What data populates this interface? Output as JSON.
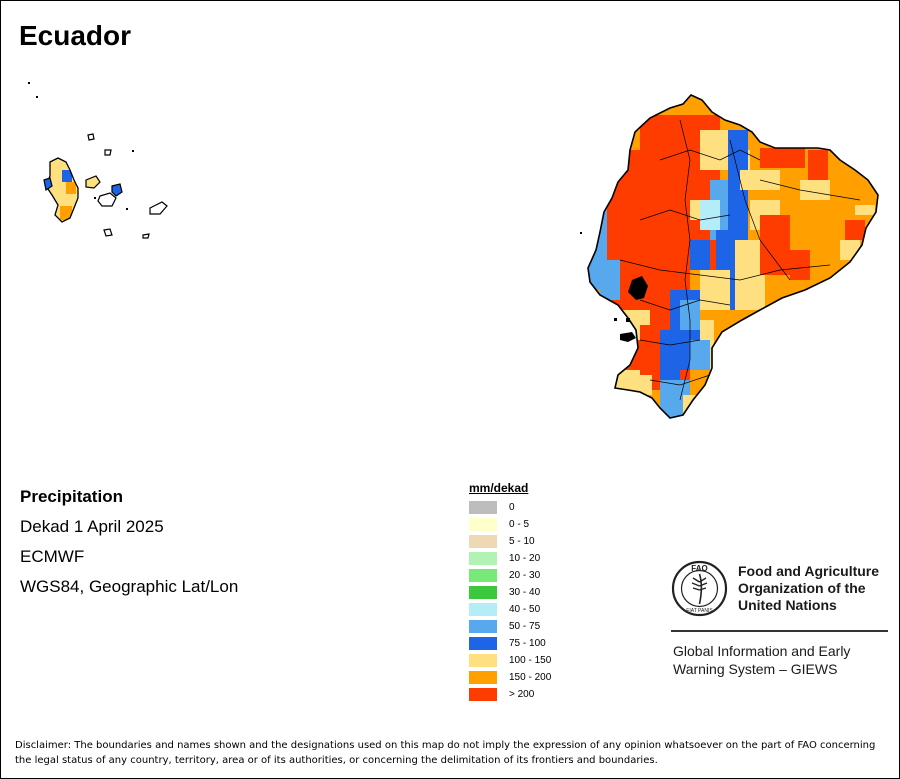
{
  "title": "Ecuador",
  "info": {
    "variable": "Precipitation",
    "period": "Dekad 1 April 2025",
    "source": "ECMWF",
    "projection": "WGS84, Geographic Lat/Lon"
  },
  "legend": {
    "title": "mm/dekad",
    "classes": [
      {
        "label": "0",
        "color": "#bdbdbd"
      },
      {
        "label": "0 - 5",
        "color": "#ffffcc"
      },
      {
        "label": "5 - 10",
        "color": "#efd9b4"
      },
      {
        "label": "10 - 20",
        "color": "#b2f2b2"
      },
      {
        "label": "20 - 30",
        "color": "#78e878"
      },
      {
        "label": "30 - 40",
        "color": "#3cc83c"
      },
      {
        "label": "40 - 50",
        "color": "#b4ecf8"
      },
      {
        "label": "50 - 75",
        "color": "#58a8ee"
      },
      {
        "label": "75 - 100",
        "color": "#1e64e6"
      },
      {
        "label": "100 - 150",
        "color": "#ffe080"
      },
      {
        "label": "150 - 200",
        "color": "#ffa000"
      },
      {
        "label": "> 200",
        "color": "#ff3c00"
      }
    ]
  },
  "organization": {
    "name_line1": "Food and Agriculture",
    "name_line2": "Organization of the",
    "name_line3": "United Nations",
    "logo_text_top": "FAO",
    "logo_text_bottom": "FIAT PANIS",
    "system_line1": "Global Information and Early",
    "system_line2": "Warning System – GIEWS"
  },
  "disclaimer": "Disclaimer: The boundaries and names shown and the designations used on this map do not imply the expression of any opinion whatsoever on the part of FAO concerning the legal status of any country, territory, area or of its authorities, or concerning the delimitation of its frontiers and boundaries."
}
